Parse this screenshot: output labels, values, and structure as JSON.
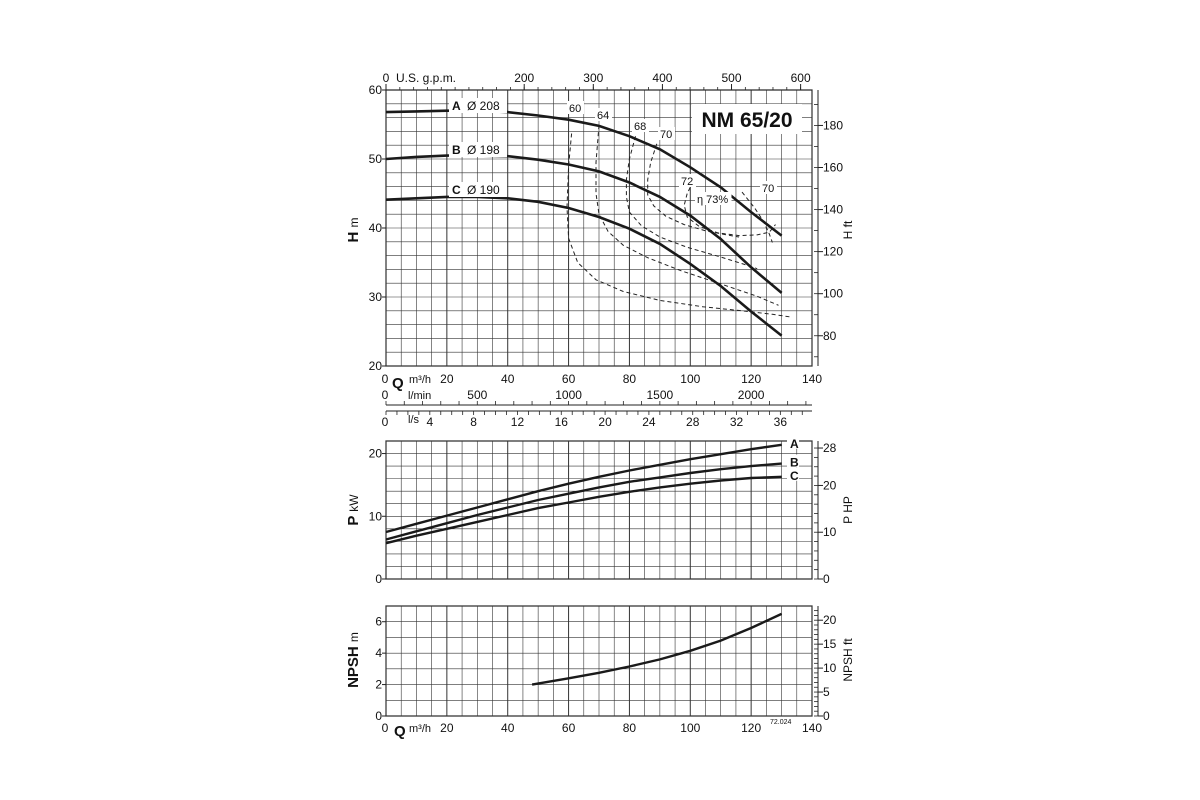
{
  "title": "NM 65/20",
  "code": "72.024",
  "chart_data": [
    {
      "type": "line",
      "panel": "head",
      "ylabel_main": "H",
      "ylabel_unit": "m",
      "ylabel_right": "H ft",
      "xlim": [
        0,
        140
      ],
      "ylim": [
        20,
        60
      ],
      "yticks": [
        20,
        30,
        40,
        50,
        60
      ],
      "ft_ticks": [
        80,
        100,
        120,
        140,
        160,
        180
      ],
      "gpm_label": "U.S. g.p.m.",
      "gpm_ticks": [
        0,
        200,
        300,
        400,
        500,
        600
      ],
      "series": [
        {
          "name": "A",
          "diameter": "Ø 208",
          "x": [
            0,
            10,
            20,
            30,
            40,
            50,
            60,
            70,
            80,
            90,
            100,
            110,
            120,
            130
          ],
          "y": [
            56.8,
            56.9,
            57.0,
            57.0,
            56.8,
            56.3,
            55.7,
            54.8,
            53.3,
            51.4,
            48.8,
            45.9,
            42.3,
            38.9
          ]
        },
        {
          "name": "B",
          "diameter": "Ø 198",
          "x": [
            0,
            10,
            20,
            30,
            40,
            50,
            60,
            70,
            80,
            90,
            100,
            110,
            120,
            130
          ],
          "y": [
            50.0,
            50.3,
            50.5,
            50.5,
            50.4,
            49.9,
            49.2,
            48.2,
            46.6,
            44.5,
            41.8,
            38.4,
            34.3,
            30.6
          ]
        },
        {
          "name": "C",
          "diameter": "Ø 190",
          "x": [
            0,
            10,
            20,
            30,
            40,
            50,
            60,
            70,
            80,
            90,
            100,
            110,
            120,
            130
          ],
          "y": [
            44.1,
            44.3,
            44.5,
            44.5,
            44.3,
            43.8,
            42.9,
            41.6,
            39.9,
            37.7,
            34.8,
            31.6,
            27.9,
            24.4
          ]
        }
      ],
      "efficiency_labels": [
        "60",
        "64",
        "68",
        "70",
        "72",
        "η 73%",
        "70"
      ],
      "efficiency_curves": [
        {
          "x": [
            61,
            60,
            59.5,
            60,
            63,
            69,
            78,
            90,
            104,
            117,
            127,
            133
          ],
          "y": [
            53.7,
            49,
            43,
            38.5,
            35,
            32.5,
            30.8,
            29.5,
            28.6,
            28.0,
            27.5,
            27.1
          ]
        },
        {
          "x": [
            70,
            69,
            69,
            70,
            73,
            78,
            86,
            97,
            110,
            122,
            129
          ],
          "y": [
            54.9,
            49.5,
            45,
            42,
            39.5,
            37.5,
            35.7,
            33.8,
            31.9,
            30.1,
            28.8
          ]
        },
        {
          "x": [
            82,
            80,
            79,
            79,
            80,
            84,
            90,
            99,
            110,
            118,
            122
          ],
          "y": [
            53.3,
            50,
            47,
            44.5,
            42.3,
            40.3,
            38.7,
            37.2,
            35.8,
            34.7,
            34.1
          ]
        },
        {
          "x": [
            89,
            87,
            86,
            86,
            88,
            92,
            98,
            105,
            112,
            116
          ],
          "y": [
            52.2,
            49.5,
            47,
            44.8,
            43.2,
            41.7,
            40.5,
            39.6,
            39.0,
            38.7
          ]
        },
        {
          "x": [
            101,
            99,
            98,
            99,
            103,
            109,
            116,
            122,
            126,
            128
          ],
          "y": [
            46.8,
            45,
            43.3,
            41.6,
            40.2,
            39.3,
            38.9,
            39.0,
            39.4,
            40.5
          ]
        },
        {
          "x": [
            117,
            121,
            124,
            126,
            127
          ],
          "y": [
            45.2,
            43,
            41,
            39.1,
            37.9
          ]
        }
      ]
    },
    {
      "type": "line",
      "panel": "power",
      "ylabel_main": "P",
      "ylabel_unit": "kW",
      "ylabel_right": "P HP",
      "xlim": [
        0,
        140
      ],
      "ylim": [
        0,
        22
      ],
      "yticks": [
        0,
        10,
        20
      ],
      "hp_ticks": [
        0,
        10,
        20,
        28
      ],
      "series": [
        {
          "name": "A",
          "x": [
            0,
            10,
            20,
            30,
            40,
            50,
            60,
            70,
            80,
            90,
            100,
            110,
            120,
            130
          ],
          "y": [
            7.5,
            8.8,
            10.1,
            11.4,
            12.7,
            14.0,
            15.2,
            16.3,
            17.3,
            18.2,
            19.1,
            19.9,
            20.7,
            21.4
          ]
        },
        {
          "name": "B",
          "x": [
            0,
            10,
            20,
            30,
            40,
            50,
            60,
            70,
            80,
            90,
            100,
            110,
            120,
            130
          ],
          "y": [
            6.3,
            7.6,
            8.9,
            10.2,
            11.4,
            12.6,
            13.6,
            14.6,
            15.5,
            16.2,
            16.9,
            17.5,
            18.0,
            18.4
          ]
        },
        {
          "name": "C",
          "x": [
            0,
            10,
            20,
            30,
            40,
            50,
            60,
            70,
            80,
            90,
            100,
            110,
            120,
            130
          ],
          "y": [
            5.7,
            6.9,
            8.0,
            9.1,
            10.2,
            11.3,
            12.2,
            13.1,
            13.9,
            14.6,
            15.2,
            15.7,
            16.1,
            16.3
          ]
        }
      ]
    },
    {
      "type": "line",
      "panel": "npsh",
      "ylabel_main": "NPSH",
      "ylabel_unit": "m",
      "ylabel_right": "NPSH ft",
      "xlim": [
        0,
        140
      ],
      "ylim": [
        0,
        7
      ],
      "yticks": [
        0,
        2,
        4,
        6
      ],
      "ft_ticks": [
        0,
        5,
        10,
        15,
        20
      ],
      "series": [
        {
          "name": "NPSH",
          "x": [
            48,
            60,
            70,
            80,
            90,
            100,
            110,
            120,
            130
          ],
          "y": [
            2.0,
            2.4,
            2.75,
            3.15,
            3.6,
            4.15,
            4.8,
            5.6,
            6.5
          ]
        }
      ]
    }
  ],
  "q_axis": {
    "q_label": "Q",
    "m3h_unit": "m³/h",
    "m3h_ticks": [
      0,
      20,
      40,
      60,
      80,
      100,
      120,
      140
    ],
    "lmin_unit": "l/min",
    "lmin_ticks": [
      0,
      500,
      1000,
      1500,
      2000
    ],
    "ls_unit": "l/s",
    "ls_ticks": [
      0,
      4,
      8,
      12,
      16,
      20,
      24,
      28,
      32,
      36
    ]
  }
}
